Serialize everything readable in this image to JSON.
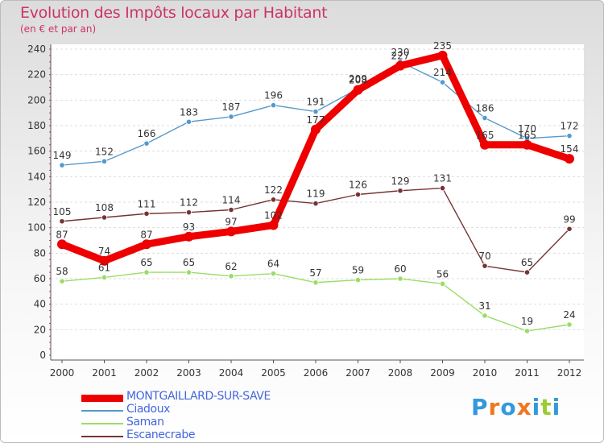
{
  "header": {
    "title": "Evolution des Impôts locaux par Habitant",
    "subtitle": "(en € et par an)"
  },
  "logo": {
    "text": "Proxiti",
    "colors": [
      "#3399dd",
      "#ee7722",
      "#3399dd",
      "#ee7722",
      "#3399dd",
      "#99cc33",
      "#3399dd"
    ]
  },
  "chart_data": {
    "type": "line",
    "title": "Evolution des Impôts locaux par Habitant",
    "subtitle": "(en € et par an)",
    "x": [
      "2000",
      "2001",
      "2002",
      "2003",
      "2004",
      "2005",
      "2006",
      "2007",
      "2008",
      "2009",
      "2010",
      "2011",
      "2012"
    ],
    "ylim": [
      0,
      240
    ],
    "yticks": [
      0,
      20,
      40,
      60,
      80,
      100,
      120,
      140,
      160,
      180,
      200,
      220,
      240
    ],
    "grid": "horizontal",
    "legend_position": "bottom-left",
    "series": [
      {
        "name": "MONTGAILLARD-SUR-SAVE",
        "color": "#ee0000",
        "values": [
          87,
          74,
          87,
          93,
          97,
          102,
          177,
          208,
          227,
          235,
          165,
          165,
          154
        ],
        "labels": [
          "87",
          "74",
          "87",
          "93",
          "97",
          "102",
          "177",
          "208",
          "227",
          "235",
          "165",
          "165",
          "154"
        ]
      },
      {
        "name": "Ciadoux",
        "color": "#5599cc",
        "values": [
          149,
          152,
          166,
          183,
          187,
          196,
          191,
          209,
          230,
          214,
          186,
          170,
          172
        ],
        "labels": [
          "149",
          "152",
          "166",
          "183",
          "187",
          "196",
          "191",
          "209",
          "230",
          "214",
          "186",
          "170",
          "172"
        ]
      },
      {
        "name": "Saman",
        "color": "#99dd66",
        "values": [
          58,
          61,
          65,
          65,
          62,
          64,
          57,
          59,
          60,
          56,
          31,
          19,
          24
        ],
        "labels": [
          "58",
          "61",
          "65",
          "65",
          "62",
          "64",
          "57",
          "59",
          "60",
          "56",
          "31",
          "19",
          "24"
        ]
      },
      {
        "name": "Escanecrabe",
        "color": "#773333",
        "values": [
          105,
          108,
          111,
          112,
          114,
          122,
          119,
          126,
          129,
          131,
          70,
          65,
          99
        ],
        "labels": [
          "105",
          "108",
          "111",
          "112",
          "114",
          "122",
          "119",
          "126",
          "129",
          "131",
          "70",
          "65",
          "99"
        ]
      }
    ]
  }
}
